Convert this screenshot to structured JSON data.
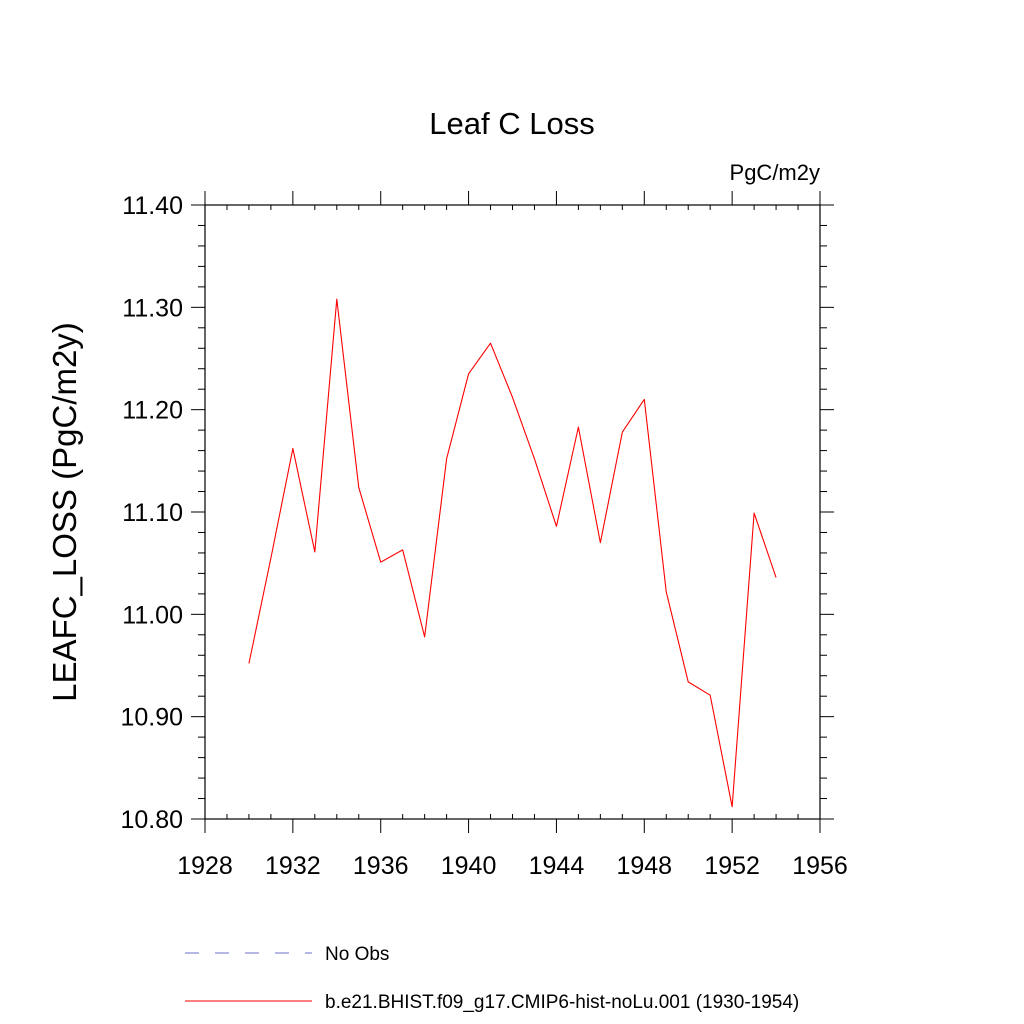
{
  "chart_data": {
    "type": "line",
    "title": "Leaf C Loss",
    "units": "PgC/m2y",
    "xlabel": "",
    "ylabel": "LEAFC_LOSS  (PgC/m2y)",
    "xlim": [
      1928,
      1956
    ],
    "ylim": [
      10.8,
      11.4
    ],
    "x_ticks": [
      "1928",
      "1932",
      "1936",
      "1940",
      "1944",
      "1948",
      "1952",
      "1956"
    ],
    "y_ticks": [
      "10.80",
      "10.90",
      "11.00",
      "11.10",
      "11.20",
      "11.30",
      "11.40"
    ],
    "grid": false,
    "series": [
      {
        "name": "b.e21.BHIST.f09_g17.CMIP6-hist-noLu.001 (1930-1954)",
        "color": "#ff0000",
        "x": [
          1930,
          1931,
          1932,
          1933,
          1934,
          1935,
          1936,
          1937,
          1938,
          1939,
          1940,
          1941,
          1942,
          1943,
          1944,
          1945,
          1946,
          1947,
          1948,
          1949,
          1950,
          1951,
          1952,
          1953,
          1954
        ],
        "y": [
          10.952,
          11.055,
          11.162,
          11.061,
          11.308,
          11.124,
          11.051,
          11.063,
          10.978,
          11.152,
          11.235,
          11.265,
          11.212,
          11.152,
          11.086,
          11.183,
          11.07,
          11.178,
          11.21,
          11.022,
          10.934,
          10.921,
          10.812,
          11.099,
          11.036
        ]
      }
    ],
    "legend": [
      {
        "label": "No Obs",
        "style": "dashed",
        "color": "#6f6fc8"
      },
      {
        "label": "b.e21.BHIST.f09_g17.CMIP6-hist-noLu.001 (1930-1954)",
        "style": "solid",
        "color": "#ff0000"
      }
    ],
    "legend_position": "bottom"
  }
}
